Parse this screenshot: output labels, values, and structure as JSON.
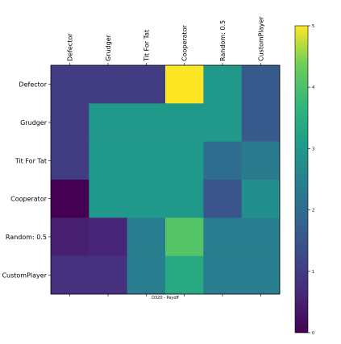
{
  "chart_data": {
    "type": "heatmap",
    "xlabel": "D320 - Payoff",
    "x_categories": [
      "Defector",
      "Grudger",
      "Tit For Tat",
      "Cooperator",
      "Random: 0.5",
      "CustomPlayer"
    ],
    "y_categories": [
      "Defector",
      "Grudger",
      "Tit For Tat",
      "Cooperator",
      "Random: 0.5",
      "CustomPlayer"
    ],
    "values": [
      [
        1.0,
        1.0,
        1.0,
        5.0,
        3.0,
        1.6
      ],
      [
        1.0,
        3.0,
        3.0,
        3.0,
        3.0,
        1.6
      ],
      [
        1.0,
        3.0,
        3.0,
        3.0,
        2.0,
        2.3
      ],
      [
        0.0,
        3.0,
        3.0,
        3.0,
        1.5,
        2.8
      ],
      [
        0.5,
        0.6,
        2.4,
        4.1,
        2.4,
        2.4
      ],
      [
        0.8,
        0.8,
        2.4,
        3.4,
        2.4,
        2.4
      ]
    ],
    "colorbar": {
      "min": 0,
      "max": 5,
      "ticks": [
        "0",
        "1",
        "2",
        "3",
        "4",
        "5"
      ]
    },
    "colormap": "viridis"
  }
}
